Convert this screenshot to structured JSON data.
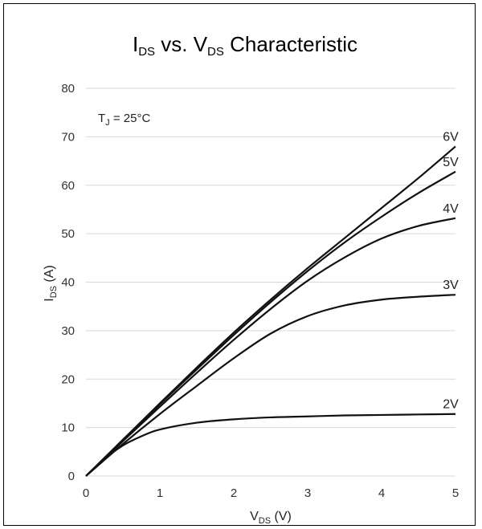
{
  "chart_data": {
    "type": "line",
    "title": {
      "main_prefix": "I",
      "main_prefix_sub": "DS",
      "middle": " vs. V",
      "middle_sub": "DS",
      "suffix": " Characteristic"
    },
    "xlabel": {
      "prefix": "V",
      "sub": "DS",
      "suffix": " (V)"
    },
    "ylabel": {
      "prefix": "I",
      "sub": "DS",
      "suffix": " (A)"
    },
    "annotation": {
      "prefix": "T",
      "sub": "J",
      "suffix": " = 25°C"
    },
    "xlim": [
      0,
      5
    ],
    "ylim": [
      0,
      80
    ],
    "x_ticks": [
      0,
      1,
      2,
      3,
      4,
      5
    ],
    "y_ticks": [
      0,
      10,
      20,
      30,
      40,
      50,
      60,
      70,
      80
    ],
    "grid": "horizontal",
    "legend": "none",
    "series": [
      {
        "name": "2V",
        "x": [
          0,
          0.25,
          0.5,
          0.75,
          1,
          1.5,
          2,
          2.5,
          3,
          3.5,
          4,
          4.5,
          5
        ],
        "y": [
          0,
          3.5,
          6.3,
          8.2,
          9.6,
          11.0,
          11.7,
          12.1,
          12.3,
          12.5,
          12.6,
          12.7,
          12.8
        ]
      },
      {
        "name": "3V",
        "x": [
          0,
          0.5,
          1,
          1.5,
          2,
          2.5,
          3,
          3.5,
          4,
          4.5,
          5
        ],
        "y": [
          0,
          6.6,
          12.8,
          18.6,
          24.3,
          29.4,
          33.0,
          35.2,
          36.4,
          37.0,
          37.4
        ]
      },
      {
        "name": "4V",
        "x": [
          0,
          0.5,
          1,
          1.5,
          2,
          2.5,
          3,
          3.5,
          4,
          4.5,
          5
        ],
        "y": [
          0,
          7.2,
          14.3,
          21.3,
          28.1,
          34.5,
          40.3,
          45.1,
          49.0,
          51.6,
          53.2
        ]
      },
      {
        "name": "5V",
        "x": [
          0,
          0.5,
          1,
          1.5,
          2,
          2.5,
          3,
          3.5,
          4,
          4.5,
          5
        ],
        "y": [
          0,
          7.4,
          14.8,
          22.0,
          29.1,
          35.9,
          42.3,
          48.2,
          53.5,
          58.4,
          62.8
        ]
      },
      {
        "name": "6V",
        "x": [
          0,
          0.5,
          1,
          1.5,
          2,
          2.5,
          3,
          3.5,
          4,
          4.5,
          5
        ],
        "y": [
          0,
          7.5,
          15.0,
          22.4,
          29.6,
          36.4,
          42.9,
          49.1,
          55.3,
          61.5,
          68.0
        ]
      }
    ]
  }
}
